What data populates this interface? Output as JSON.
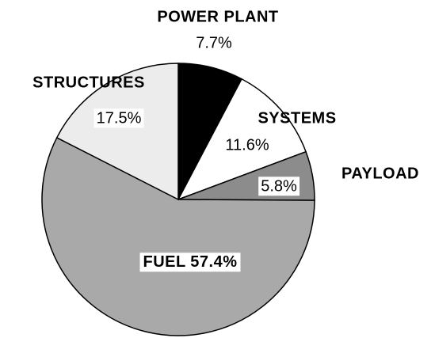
{
  "chart_data": {
    "type": "pie",
    "categories": [
      "POWER PLANT",
      "SYSTEMS",
      "PAYLOAD",
      "FUEL",
      "STRUCTURES"
    ],
    "values": [
      7.7,
      11.6,
      5.8,
      57.4,
      17.5
    ],
    "value_labels": [
      "7.7%",
      "11.6%",
      "5.8%",
      "57.4%",
      "17.5%"
    ],
    "colors": [
      "#000000",
      "#ffffff",
      "#8c8c8c",
      "#a9a9a9",
      "#ececec"
    ]
  }
}
